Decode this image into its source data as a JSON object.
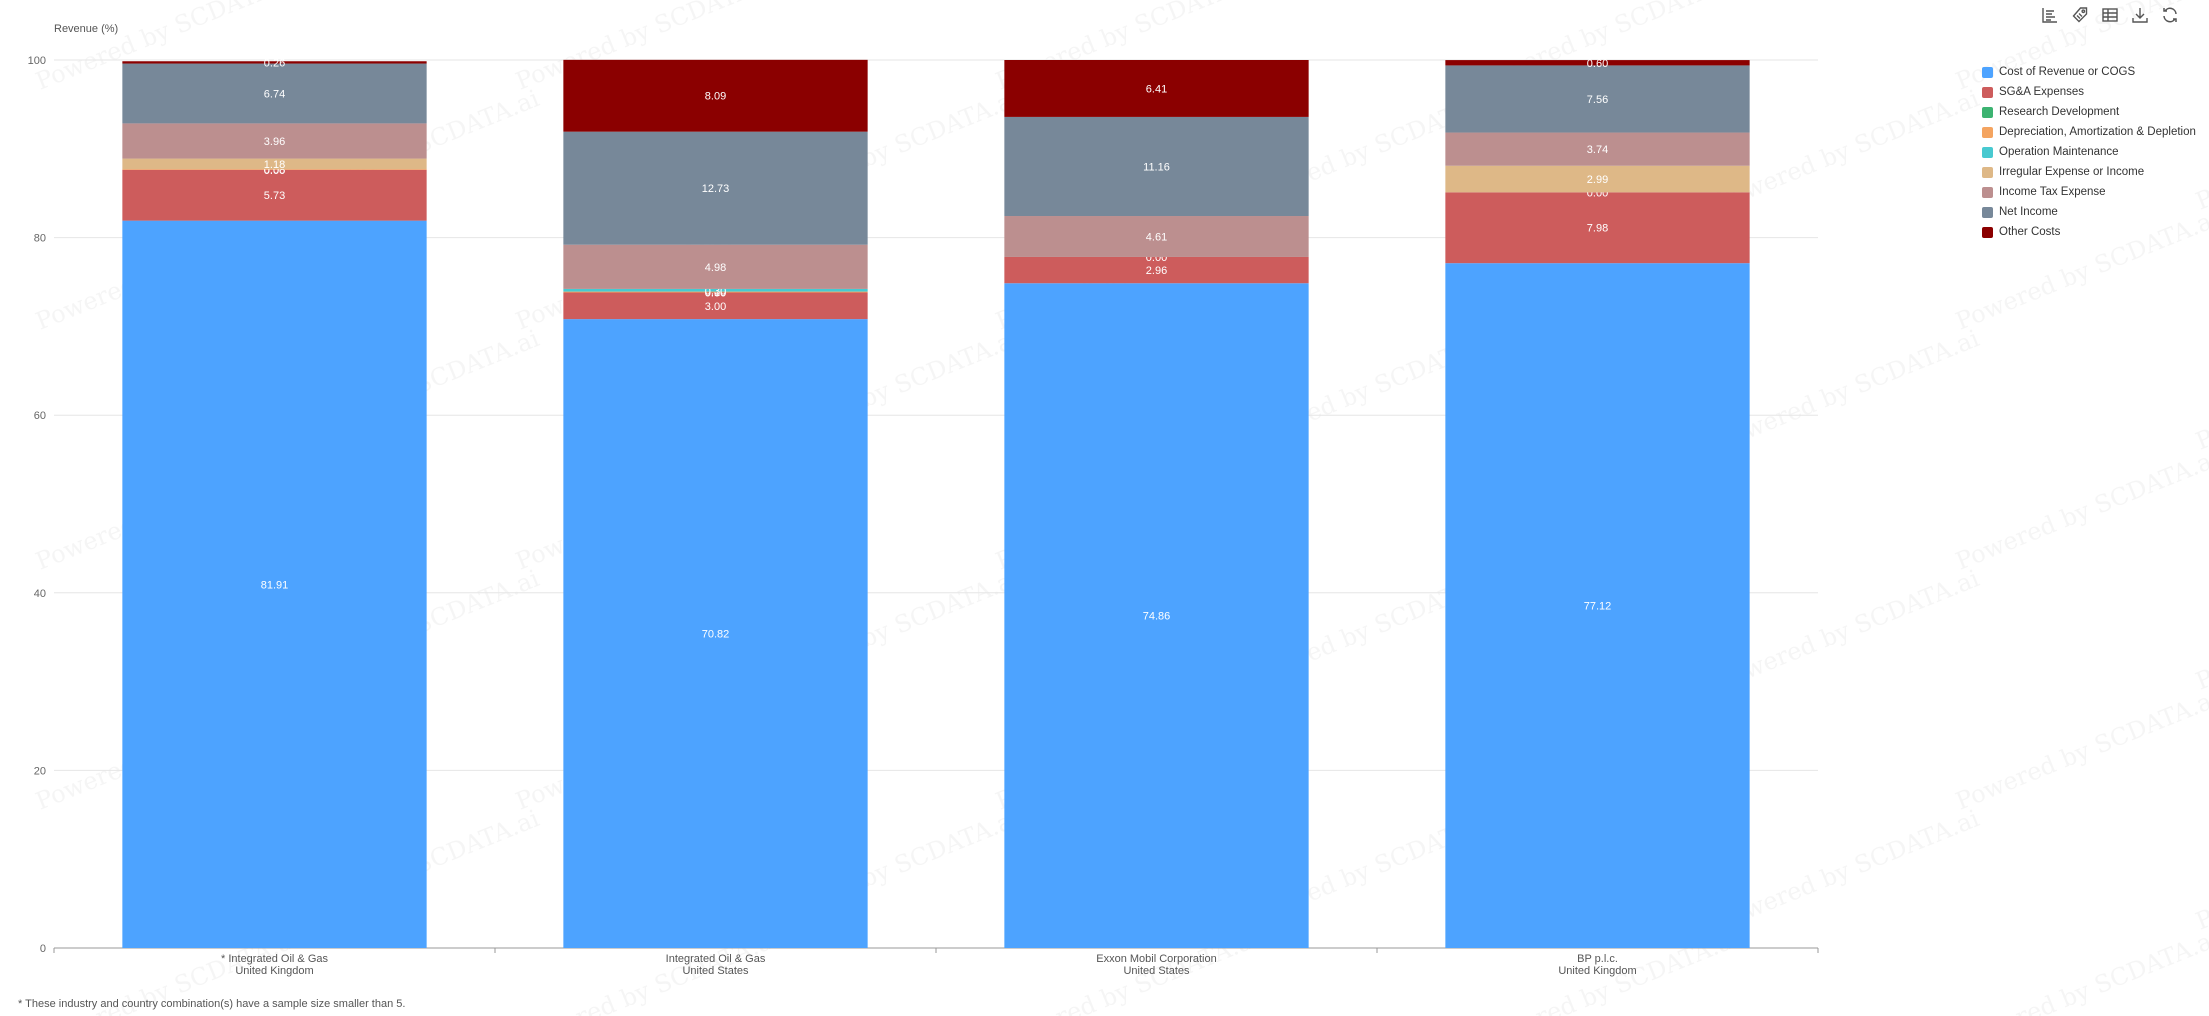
{
  "toolbar": {
    "icons": [
      "data-view-icon",
      "tag-icon",
      "table-icon",
      "download-icon",
      "refresh-icon"
    ]
  },
  "footnote": "* These industry and country combination(s) have a sample size smaller than 5.",
  "watermark_text": "Powered by SCDATA.ai",
  "chart_data": {
    "type": "bar",
    "stacked": true,
    "ylabel": "Revenue (%)",
    "ylim": [
      0,
      100
    ],
    "yticks": [
      0,
      20,
      40,
      60,
      80,
      100
    ],
    "grid": true,
    "legend_position": "right",
    "categories": [
      {
        "line1": "* Integrated Oil & Gas",
        "line2": "United Kingdom"
      },
      {
        "line1": "Integrated Oil & Gas",
        "line2": "United States"
      },
      {
        "line1": "Exxon Mobil Corporation",
        "line2": "United States"
      },
      {
        "line1": "BP p.l.c.",
        "line2": "United Kingdom"
      }
    ],
    "series": [
      {
        "name": "Cost of Revenue or COGS",
        "color": "#4da3ff",
        "values": [
          81.91,
          70.82,
          74.86,
          77.12
        ],
        "labels": [
          "81.91",
          "70.82",
          "74.86",
          "77.12"
        ]
      },
      {
        "name": "SG&A Expenses",
        "color": "#cd5c5c",
        "values": [
          5.73,
          3.0,
          2.96,
          7.98
        ],
        "labels": [
          "5.73",
          "3.00",
          "2.96",
          "7.98"
        ]
      },
      {
        "name": "Research Development",
        "color": "#3cb371",
        "values": [
          0.0,
          0.0,
          0.0,
          0.0
        ],
        "labels": [
          "0.00",
          "0.00",
          "0.00",
          "0.00"
        ]
      },
      {
        "name": "Depreciation, Amortization & Depletion",
        "color": "#f4a460",
        "values": [
          0.08,
          0.1,
          0.0,
          0.0
        ],
        "labels": [
          "0.08",
          "0.10",
          "",
          ""
        ]
      },
      {
        "name": "Operation Maintenance",
        "color": "#48c9d0",
        "values": [
          0.0,
          0.3,
          0.0,
          0.0
        ],
        "labels": [
          "",
          "0.30",
          "",
          ""
        ]
      },
      {
        "name": "Irregular Expense or Income",
        "color": "#deb887",
        "values": [
          1.18,
          0.0,
          0.0,
          2.99
        ],
        "labels": [
          "1.18",
          "",
          "",
          "2.99"
        ]
      },
      {
        "name": "Income Tax Expense",
        "color": "#bc8f8f",
        "values": [
          3.96,
          4.98,
          4.61,
          3.74
        ],
        "labels": [
          "3.96",
          "4.98",
          "4.61",
          "3.74"
        ]
      },
      {
        "name": "Net Income",
        "color": "#778899",
        "values": [
          6.74,
          12.73,
          11.16,
          7.56
        ],
        "labels": [
          "6.74",
          "12.73",
          "11.16",
          "7.56"
        ]
      },
      {
        "name": "Other Costs",
        "color": "#8b0000",
        "values": [
          0.26,
          8.09,
          6.41,
          0.6
        ],
        "labels": [
          "0.26",
          "8.09",
          "6.41",
          "0.60"
        ]
      }
    ]
  }
}
